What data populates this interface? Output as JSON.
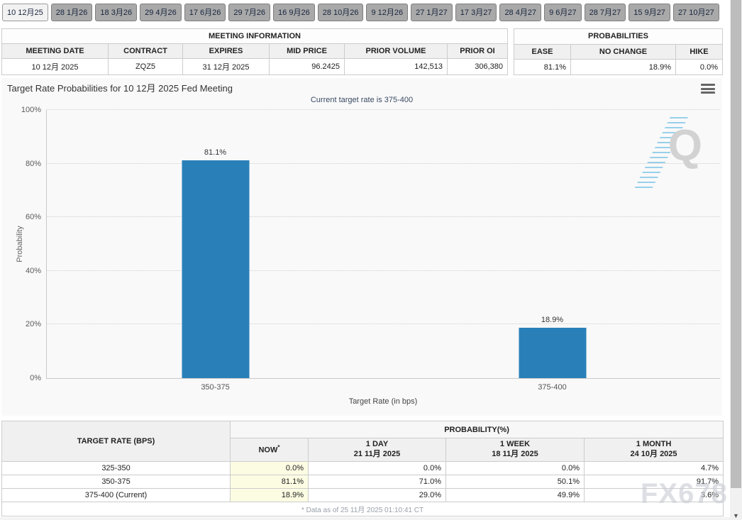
{
  "colors": {
    "bar": "#2980b9",
    "tab_bg": "#a9a9a9",
    "tab_active_bg": "#f2f2f2",
    "tab_border": "#7f7f7f",
    "header_bg": "#f0f0f0",
    "table_border": "#cccccc",
    "now_col_bg": "#fcfce3",
    "chart_bg": "#f9f9f9",
    "subtitle_color": "#3a4a63",
    "watermark_color": "#c9ccd4"
  },
  "tabs": [
    "10 12月25",
    "28 1月26",
    "18 3月26",
    "29 4月26",
    "17 6月26",
    "29 7月26",
    "16 9月26",
    "28 10月26",
    "9 12月26",
    "27 1月27",
    "17 3月27",
    "28 4月27",
    "9 6月27",
    "28 7月27",
    "15 9月27",
    "27 10月27"
  ],
  "meeting_info": {
    "title": "MEETING INFORMATION",
    "headers": [
      "MEETING DATE",
      "CONTRACT",
      "EXPIRES",
      "MID PRICE",
      "PRIOR VOLUME",
      "PRIOR OI"
    ],
    "values": [
      "10 12月 2025",
      "ZQZ5",
      "31 12月 2025",
      "96.2425",
      "142,513",
      "306,380"
    ]
  },
  "probabilities": {
    "title": "PROBABILITIES",
    "headers": [
      "EASE",
      "NO CHANGE",
      "HIKE"
    ],
    "values": [
      "81.1%",
      "18.9%",
      "0.0%"
    ]
  },
  "chart_data": {
    "type": "bar",
    "title": "Target Rate Probabilities for 10 12月 2025 Fed Meeting",
    "subtitle": "Current target rate is 375-400",
    "categories": [
      "350-375",
      "375-400"
    ],
    "values": [
      81.1,
      18.9
    ],
    "value_labels": [
      "81.1%",
      "18.9%"
    ],
    "xlabel": "Target Rate (in bps)",
    "ylabel": "Probability",
    "ylim": [
      0,
      100
    ],
    "y_ticks": [
      "0%",
      "20%",
      "40%",
      "60%",
      "80%",
      "100%"
    ],
    "grid": "dotted horizontal",
    "legend": "none",
    "bar_color": "#2980b9"
  },
  "prob_table": {
    "col1_header": "TARGET RATE (BPS)",
    "group_header": "PROBABILITY(%)",
    "now_label": "NOW",
    "now_sup": "*",
    "day_label": "1 DAY",
    "day_date": "21 11月 2025",
    "week_label": "1 WEEK",
    "week_date": "18 11月 2025",
    "month_label": "1 MONTH",
    "month_date": "24 10月 2025",
    "rows": [
      {
        "rate": "325-350",
        "now": "0.0%",
        "day": "0.0%",
        "week": "0.0%",
        "month": "4.7%"
      },
      {
        "rate": "350-375",
        "now": "81.1%",
        "day": "71.0%",
        "week": "50.1%",
        "month": "91.7%"
      },
      {
        "rate": "375-400 (Current)",
        "now": "18.9%",
        "day": "29.0%",
        "week": "49.9%",
        "month": "3.6%"
      }
    ],
    "footnote": "* Data as of 25 11月 2025 01:10:41 CT"
  },
  "watermarks": {
    "chart_logo": "Q",
    "brand": "FX678"
  }
}
